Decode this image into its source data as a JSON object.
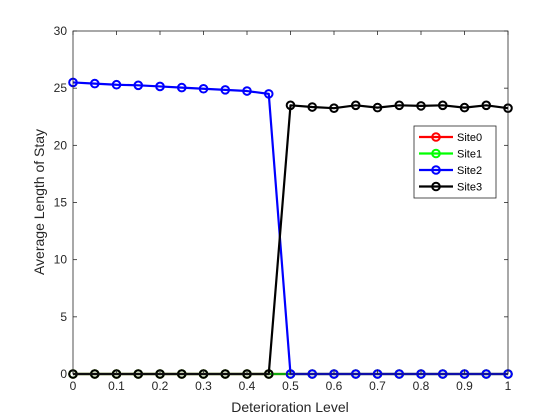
{
  "chart_data": {
    "type": "line",
    "title": "",
    "xlabel": "Deterioration Level",
    "ylabel": "Average Length of Stay",
    "xlim": [
      0,
      1
    ],
    "ylim": [
      0,
      30
    ],
    "xticks": [
      "0",
      "0.1",
      "0.2",
      "0.3",
      "0.4",
      "0.5",
      "0.6",
      "0.7",
      "0.8",
      "0.9",
      "1"
    ],
    "yticks": [
      "0",
      "5",
      "10",
      "15",
      "20",
      "25",
      "30"
    ],
    "grid": false,
    "legend_position": "right",
    "x": [
      0,
      0.05,
      0.1,
      0.15,
      0.2,
      0.25,
      0.3,
      0.35,
      0.4,
      0.45,
      0.5,
      0.55,
      0.6,
      0.65,
      0.7,
      0.75,
      0.8,
      0.85,
      0.9,
      0.95,
      1
    ],
    "series": [
      {
        "name": "Site0",
        "color": "#ff0000",
        "values": [
          0,
          0,
          0,
          0,
          0,
          0,
          0,
          0,
          0,
          0,
          0,
          0,
          0,
          0,
          0,
          0,
          0,
          0,
          0,
          0,
          0
        ]
      },
      {
        "name": "Site1",
        "color": "#00ff00",
        "values": [
          0,
          0,
          0,
          0,
          0,
          0,
          0,
          0,
          0,
          0,
          0,
          0,
          0,
          0,
          0,
          0,
          0,
          0,
          0,
          0,
          0
        ]
      },
      {
        "name": "Site2",
        "color": "#0000ff",
        "values": [
          25.5,
          25.4,
          25.3,
          25.25,
          25.15,
          25.05,
          24.95,
          24.85,
          24.75,
          24.5,
          0,
          0,
          0,
          0,
          0,
          0,
          0,
          0,
          0,
          0,
          0
        ]
      },
      {
        "name": "Site3",
        "color": "#000000",
        "values": [
          0,
          0,
          0,
          0,
          0,
          0,
          0,
          0,
          0,
          0,
          23.5,
          23.35,
          23.25,
          23.5,
          23.3,
          23.5,
          23.45,
          23.5,
          23.3,
          23.5,
          23.25
        ]
      }
    ]
  }
}
